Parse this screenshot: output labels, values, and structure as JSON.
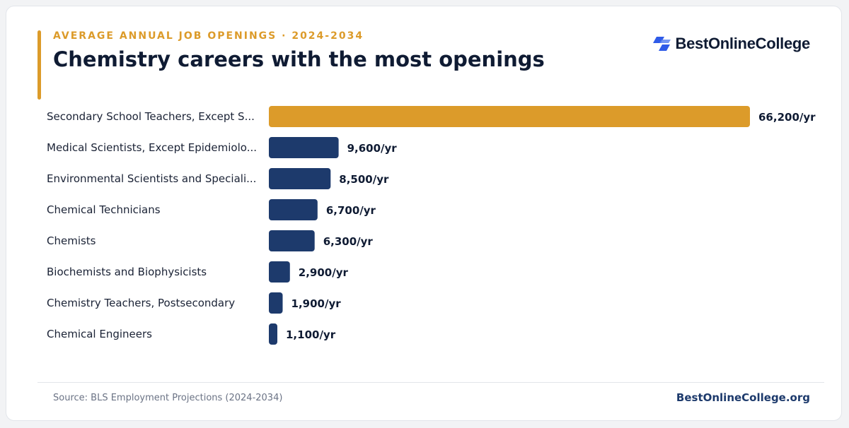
{
  "header": {
    "eyebrow": "AVERAGE ANNUAL JOB OPENINGS · 2024-2034",
    "title": "Chemistry careers with the most openings"
  },
  "brand": {
    "name": "BestOnlineCollege",
    "logo_icon": "brand-logo-icon",
    "logo_color": "#2f5be8"
  },
  "colors": {
    "highlight": "#dc9b2a",
    "bar": "#1d3a6c",
    "title": "#0f1b33"
  },
  "chart_data": {
    "type": "bar",
    "orientation": "horizontal",
    "title": "Chemistry careers with the most openings",
    "subtitle": "AVERAGE ANNUAL JOB OPENINGS · 2024-2034",
    "categories": [
      "Secondary School Teachers, Except S...",
      "Medical Scientists, Except Epidemiolo...",
      "Environmental Scientists and Speciali...",
      "Chemical Technicians",
      "Chemists",
      "Biochemists and Biophysicists",
      "Chemistry Teachers, Postsecondary",
      "Chemical Engineers"
    ],
    "values": [
      66200,
      9600,
      8500,
      6700,
      6300,
      2900,
      1900,
      1100
    ],
    "value_labels": [
      "66,200/yr",
      "9,600/yr",
      "8,500/yr",
      "6,700/yr",
      "6,300/yr",
      "2,900/yr",
      "1,900/yr",
      "1,100/yr"
    ],
    "highlight_index": 0,
    "xlim": [
      0,
      66200
    ],
    "grid": false,
    "legend": "none"
  },
  "footer": {
    "source": "Source: BLS Employment Projections (2024-2034)",
    "brand": "BestOnlineCollege.org"
  }
}
